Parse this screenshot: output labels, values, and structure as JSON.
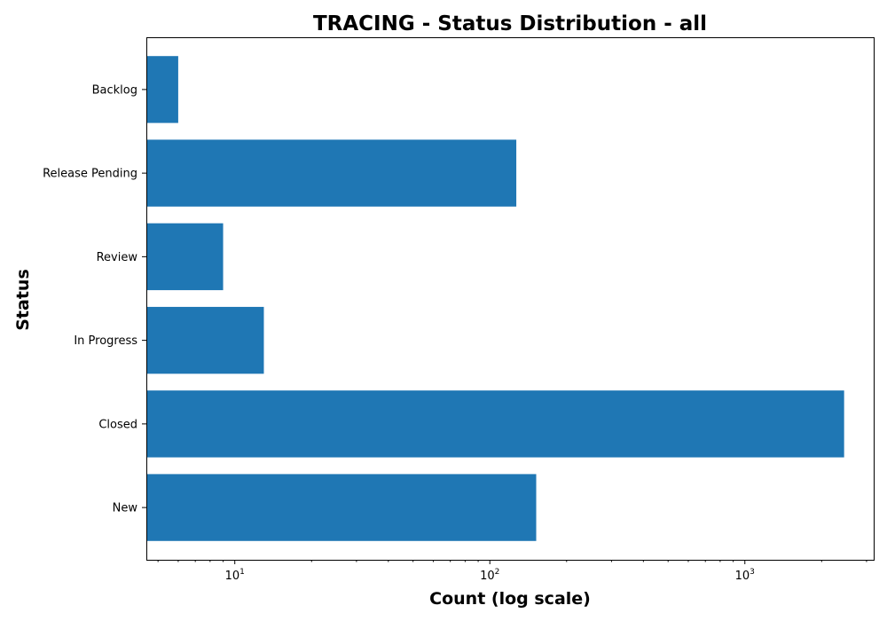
{
  "chart_data": {
    "type": "bar",
    "orientation": "horizontal",
    "title": "TRACING - Status Distribution - all",
    "xlabel": "Count (log scale)",
    "ylabel": "Status",
    "x_scale": "log",
    "xlim": [
      4.5,
      3200
    ],
    "x_ticks": [
      {
        "value": 10,
        "base": "10",
        "exp": "1"
      },
      {
        "value": 100,
        "base": "10",
        "exp": "2"
      },
      {
        "value": 1000,
        "base": "10",
        "exp": "3"
      }
    ],
    "categories": [
      "New",
      "Closed",
      "In Progress",
      "Review",
      "Release Pending",
      "Backlog"
    ],
    "values": [
      152,
      2450,
      13,
      9,
      127,
      6
    ],
    "bar_color": "#1f77b4",
    "grid": false
  }
}
